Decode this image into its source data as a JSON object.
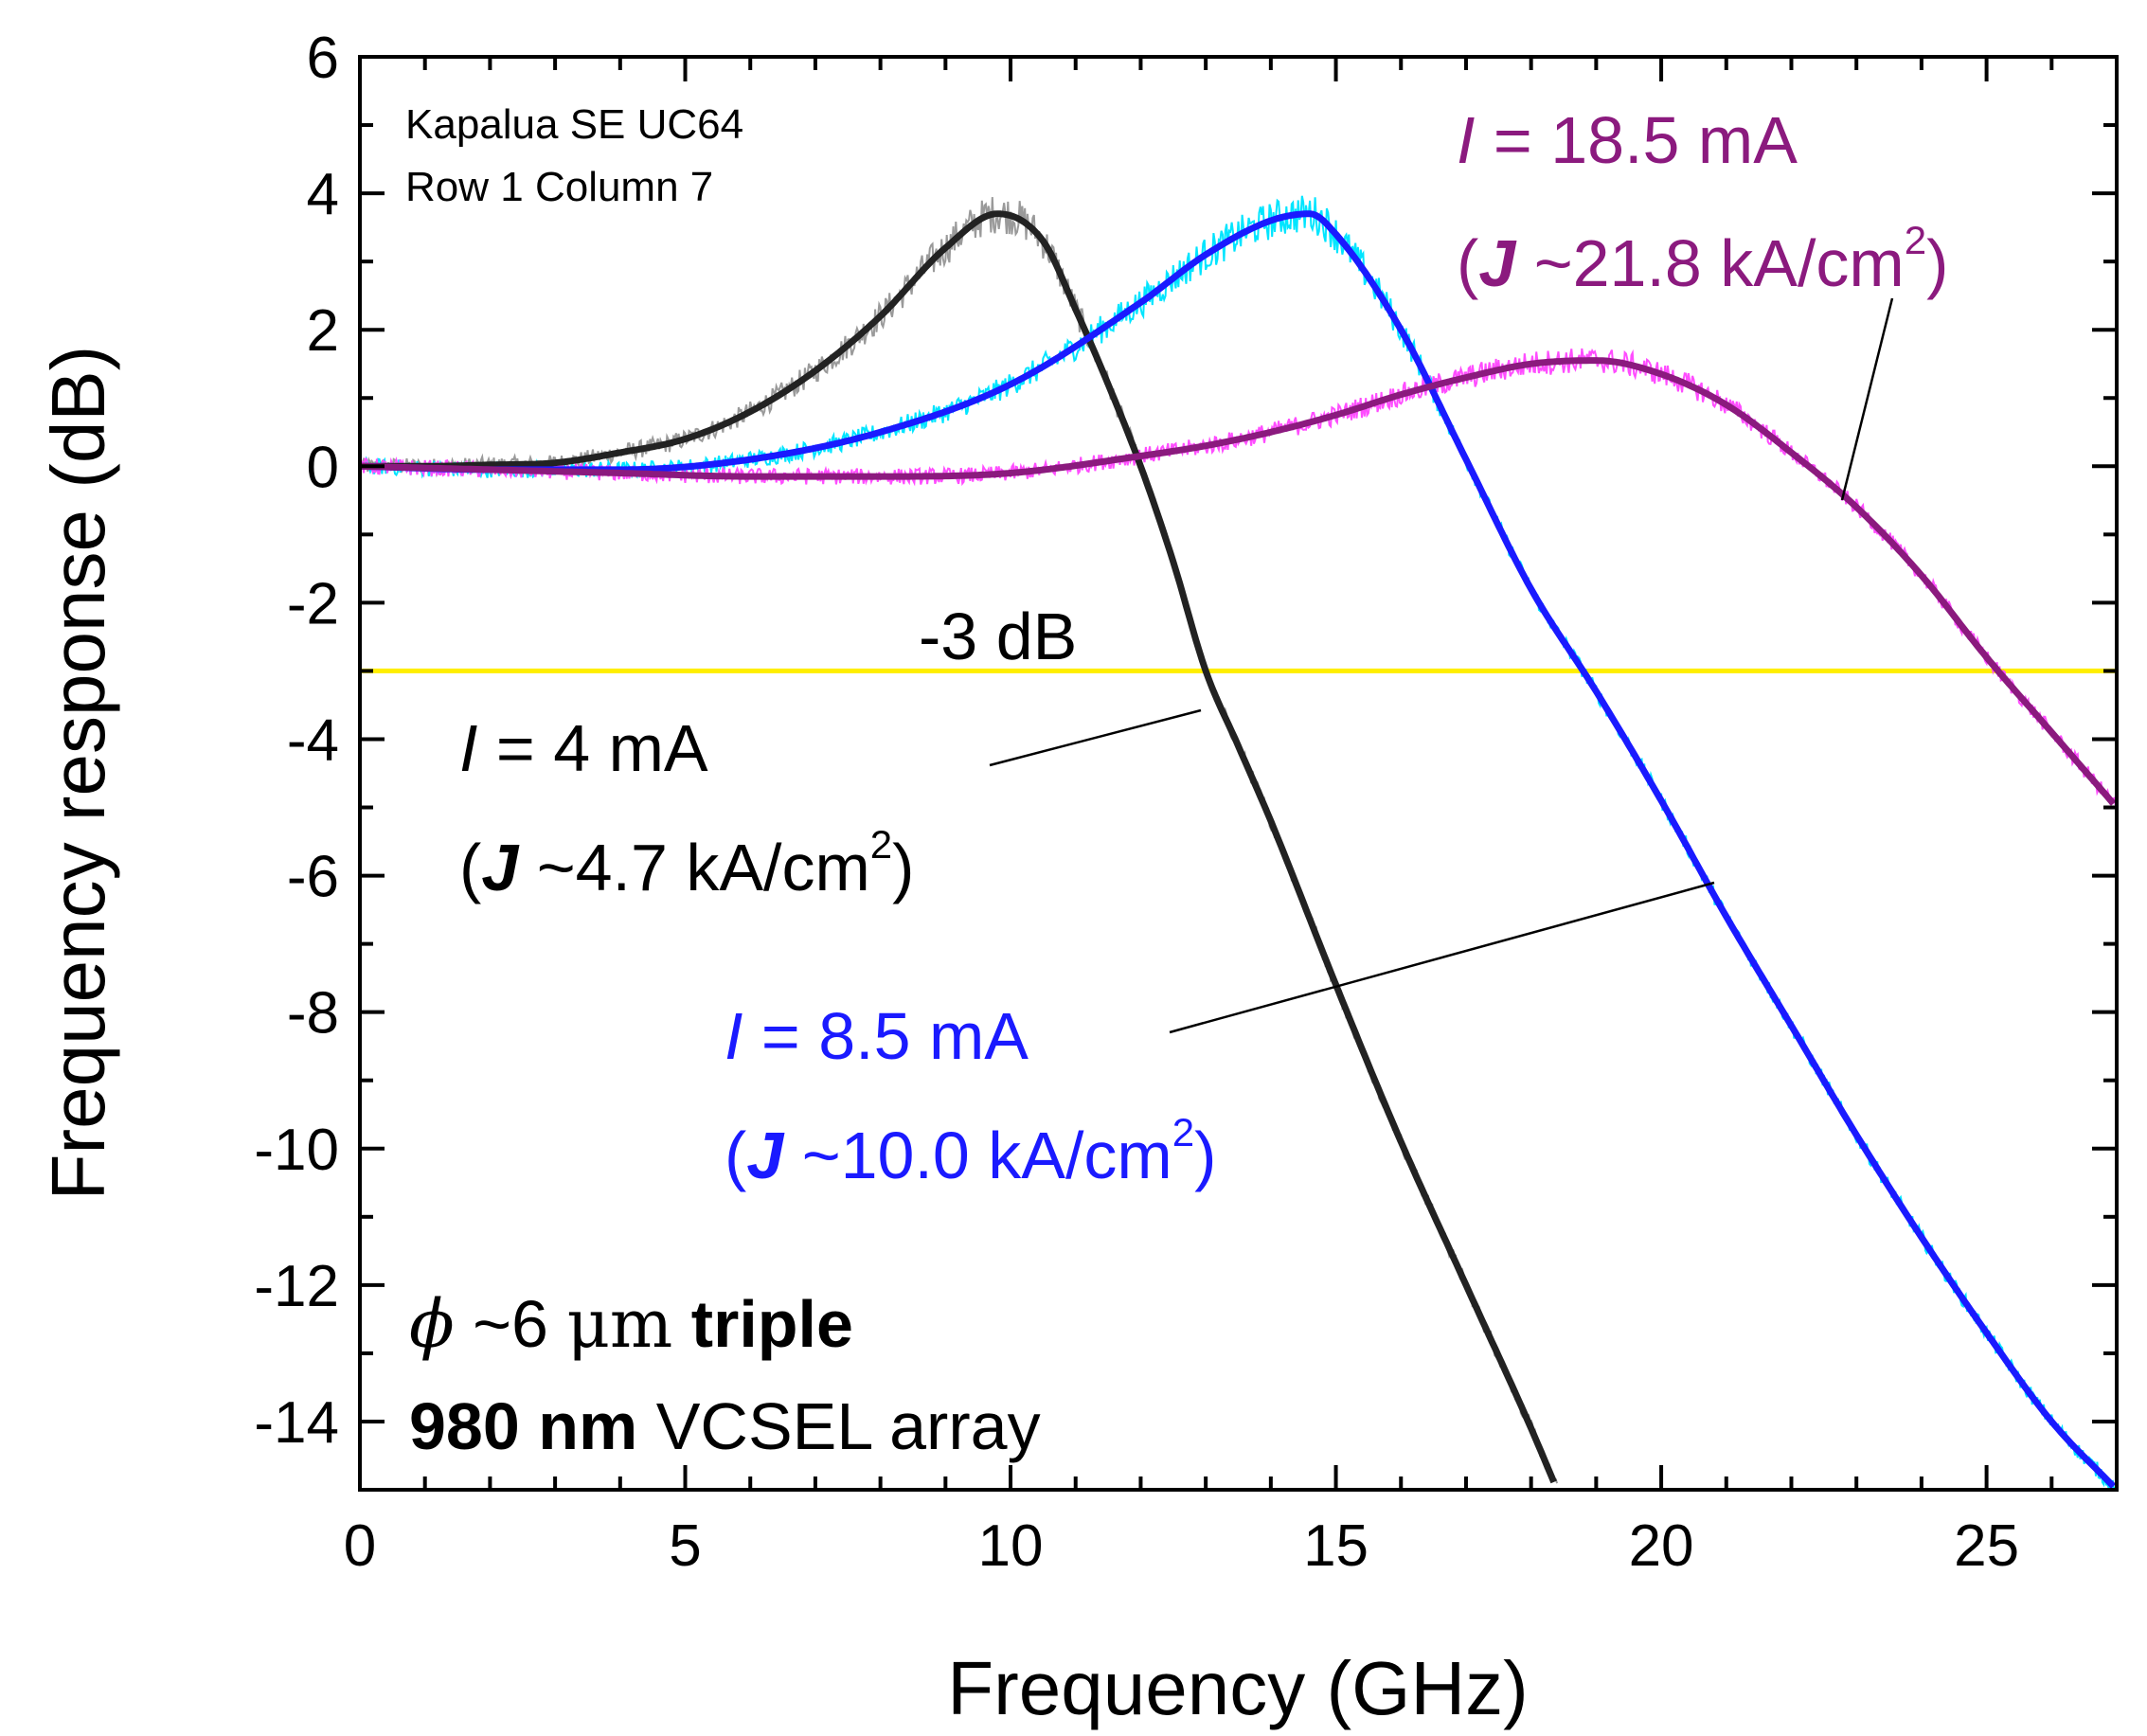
{
  "chart_data": {
    "type": "line",
    "title": "",
    "xlabel": "Frequency (GHz)",
    "ylabel": "Frequency response (dB)",
    "xlim": [
      0,
      27
    ],
    "ylim": [
      -15,
      6
    ],
    "x_major_ticks": [
      0,
      5,
      10,
      15,
      20,
      25
    ],
    "x_minor_step": 1,
    "y_major_ticks": [
      6,
      4,
      2,
      0,
      -2,
      -4,
      -6,
      -8,
      -10,
      -12,
      -14
    ],
    "y_minor_step": 1,
    "grid": false,
    "reference_line": {
      "y": -3,
      "label": "-3 dB",
      "color": "#ffee00"
    },
    "series": [
      {
        "name": "I = 4 mA",
        "fit_color": "#222222",
        "data_color": "#9a9a9a",
        "fit": {
          "f": [
            0,
            1,
            2,
            3,
            4,
            5,
            6,
            7,
            8,
            9,
            9.8,
            10.5,
            11,
            11.5,
            12,
            12.5,
            13,
            13.5,
            14,
            15,
            16,
            17,
            18,
            18.4
          ],
          "db": [
            0,
            0,
            0.02,
            0.05,
            0.2,
            0.4,
            0.8,
            1.4,
            2.2,
            3.2,
            3.7,
            3.3,
            2.3,
            1.2,
            0,
            -1.4,
            -3,
            -4.1,
            -5.2,
            -7.6,
            -9.9,
            -12,
            -14.1,
            -15
          ]
        },
        "annotation": {
          "line1_italic": "I",
          "line1_rest": " = 4 mA",
          "line2_open": "(",
          "line2_bold_italic": "J",
          "line2_rest": " ~4.7 kA/cm",
          "line2_sup": "2",
          "line2_close": ")"
        }
      },
      {
        "name": "I = 8.5 mA",
        "fit_color": "#1a1aff",
        "data_color": "#00e5ff",
        "fit": {
          "f": [
            0,
            2,
            4,
            6,
            8,
            10,
            12,
            13,
            14,
            14.6,
            15,
            16,
            17,
            18,
            19,
            20,
            21,
            22,
            23,
            24,
            25,
            26,
            27
          ],
          "db": [
            0,
            -0.05,
            -0.05,
            0.1,
            0.5,
            1.2,
            2.4,
            3.1,
            3.6,
            3.7,
            3.4,
            2.0,
            0.1,
            -1.8,
            -3.3,
            -4.9,
            -6.6,
            -8.2,
            -9.8,
            -11.3,
            -12.7,
            -14,
            -15
          ]
        },
        "annotation": {
          "line1_italic": "I",
          "line1_rest": " = 8.5 mA",
          "line2_open": "(",
          "line2_bold_italic": "J",
          "line2_rest": " ~10.0 kA/cm",
          "line2_sup": "2",
          "line2_close": ")"
        }
      },
      {
        "name": "I = 18.5 mA",
        "fit_color": "#8b1a7e",
        "data_color": "#ff4dff",
        "fit": {
          "f": [
            0,
            2,
            4,
            6,
            8,
            10,
            12,
            13,
            14,
            15,
            16,
            17,
            18,
            19,
            20,
            21,
            22,
            23,
            24,
            25,
            26,
            27
          ],
          "db": [
            0,
            -0.05,
            -0.1,
            -0.15,
            -0.15,
            -0.1,
            0.15,
            0.3,
            0.5,
            0.75,
            1.05,
            1.3,
            1.5,
            1.55,
            1.35,
            0.9,
            0.2,
            -0.6,
            -1.6,
            -2.8,
            -3.9,
            -5.0
          ]
        },
        "annotation": {
          "line1_italic": "I",
          "line1_rest": " = 18.5 mA",
          "line2_open": "(",
          "line2_bold_italic": "J",
          "line2_rest": " ~21.8 kA/cm",
          "line2_sup": "2",
          "line2_close": ")"
        }
      }
    ],
    "device_label": {
      "line1": "Kapalua SE UC64",
      "line2": "Row 1 Column 7"
    },
    "footnote": {
      "line1_symbol": "ϕ",
      "line1_text": " ~6 ",
      "line1_unit": "μm",
      "line1_bold": " triple",
      "line2_bold": "980 nm",
      "line2_text": " VCSEL array"
    }
  }
}
